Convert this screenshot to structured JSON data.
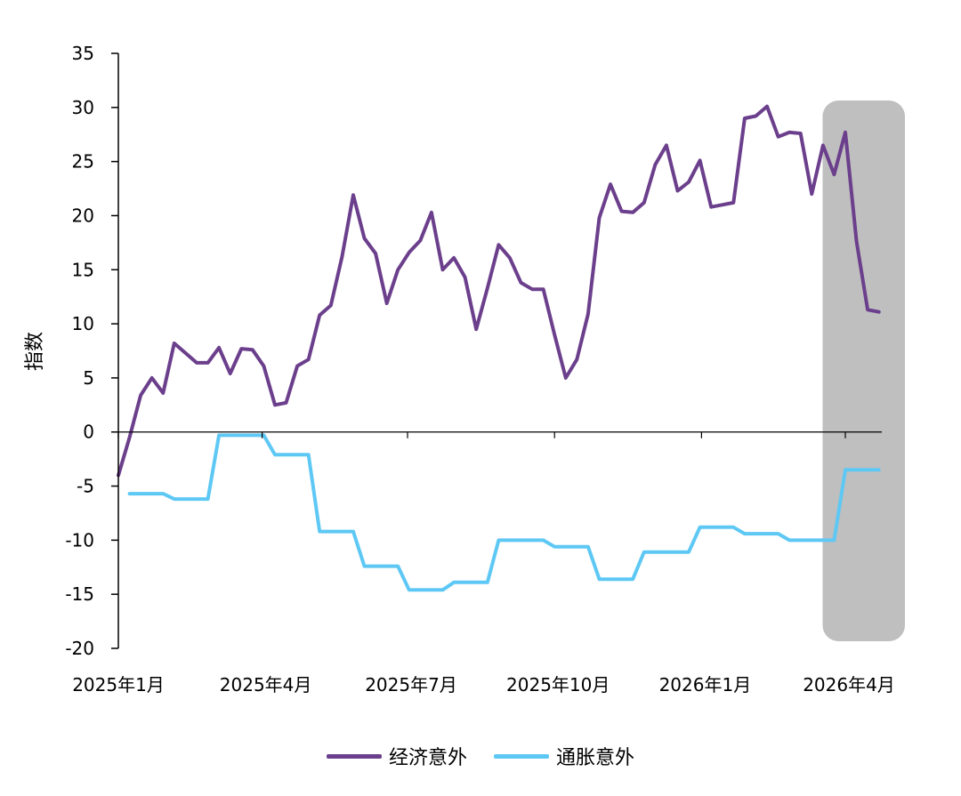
{
  "chart_data": {
    "type": "line",
    "title": "",
    "xlabel": "",
    "ylabel": "指数",
    "ylim": [
      -20,
      35
    ],
    "yticks": [
      35,
      30,
      25,
      20,
      15,
      10,
      5,
      0,
      -5,
      -10,
      -15,
      -20
    ],
    "xlim": [
      "2025-01-01",
      "2026-05-01"
    ],
    "xticks": [
      {
        "date": "2025-01-01",
        "label": "2025年1月"
      },
      {
        "date": "2025-04-01",
        "label": "2025年4月"
      },
      {
        "date": "2025-07-01",
        "label": "2025年7月"
      },
      {
        "date": "2025-10-01",
        "label": "2025年10月"
      },
      {
        "date": "2026-01-01",
        "label": "2026年1月"
      },
      {
        "date": "2026-04-01",
        "label": "2026年4月"
      }
    ],
    "highlight": {
      "from": "2026-03-20",
      "to": "2026-05-05",
      "color": "#bfbfbf"
    },
    "grid": false,
    "legend": "bottom-center",
    "series": [
      {
        "name": "经济意外",
        "color": "#6b3f8c",
        "points": [
          [
            "2025-01-01",
            -4.0
          ],
          [
            "2025-01-08",
            -0.5
          ],
          [
            "2025-01-15",
            3.4
          ],
          [
            "2025-01-22",
            5.0
          ],
          [
            "2025-01-29",
            3.6
          ],
          [
            "2025-02-05",
            8.2
          ],
          [
            "2025-02-12",
            7.3
          ],
          [
            "2025-02-19",
            6.4
          ],
          [
            "2025-02-26",
            6.4
          ],
          [
            "2025-03-05",
            7.8
          ],
          [
            "2025-03-12",
            5.4
          ],
          [
            "2025-03-19",
            7.7
          ],
          [
            "2025-03-26",
            7.6
          ],
          [
            "2025-04-02",
            6.1
          ],
          [
            "2025-04-09",
            2.5
          ],
          [
            "2025-04-16",
            2.7
          ],
          [
            "2025-04-23",
            6.1
          ],
          [
            "2025-04-30",
            6.7
          ],
          [
            "2025-05-07",
            10.8
          ],
          [
            "2025-05-14",
            11.7
          ],
          [
            "2025-05-21",
            16.2
          ],
          [
            "2025-05-28",
            21.9
          ],
          [
            "2025-06-04",
            17.9
          ],
          [
            "2025-06-11",
            16.5
          ],
          [
            "2025-06-18",
            11.9
          ],
          [
            "2025-06-25",
            15.0
          ],
          [
            "2025-07-02",
            16.6
          ],
          [
            "2025-07-09",
            17.7
          ],
          [
            "2025-07-16",
            20.3
          ],
          [
            "2025-07-23",
            15.0
          ],
          [
            "2025-07-30",
            16.1
          ],
          [
            "2025-08-06",
            14.3
          ],
          [
            "2025-08-13",
            9.5
          ],
          [
            "2025-08-20",
            13.3
          ],
          [
            "2025-08-27",
            17.3
          ],
          [
            "2025-09-03",
            16.1
          ],
          [
            "2025-09-10",
            13.8
          ],
          [
            "2025-09-17",
            13.2
          ],
          [
            "2025-09-24",
            13.2
          ],
          [
            "2025-10-01",
            9.0
          ],
          [
            "2025-10-08",
            5.0
          ],
          [
            "2025-10-15",
            6.7
          ],
          [
            "2025-10-22",
            10.9
          ],
          [
            "2025-10-29",
            19.8
          ],
          [
            "2025-11-05",
            22.9
          ],
          [
            "2025-11-12",
            20.4
          ],
          [
            "2025-11-19",
            20.3
          ],
          [
            "2025-11-26",
            21.2
          ],
          [
            "2025-12-03",
            24.7
          ],
          [
            "2025-12-10",
            26.5
          ],
          [
            "2025-12-17",
            22.3
          ],
          [
            "2025-12-24",
            23.1
          ],
          [
            "2025-12-31",
            25.1
          ],
          [
            "2026-01-07",
            20.8
          ],
          [
            "2026-01-14",
            21.0
          ],
          [
            "2026-01-21",
            21.2
          ],
          [
            "2026-01-28",
            29.0
          ],
          [
            "2026-02-04",
            29.2
          ],
          [
            "2026-02-11",
            30.1
          ],
          [
            "2026-02-18",
            27.3
          ],
          [
            "2026-02-25",
            27.7
          ],
          [
            "2026-03-04",
            27.6
          ],
          [
            "2026-03-11",
            22.0
          ],
          [
            "2026-03-18",
            26.5
          ],
          [
            "2026-03-25",
            23.8
          ],
          [
            "2026-04-01",
            27.7
          ],
          [
            "2026-04-08",
            17.6
          ],
          [
            "2026-04-15",
            11.3
          ],
          [
            "2026-04-22",
            11.1
          ]
        ]
      },
      {
        "name": "通胀意外",
        "color": "#5ec8f5",
        "points": [
          [
            "2025-01-08",
            -5.7
          ],
          [
            "2025-01-29",
            -5.7
          ],
          [
            "2025-02-05",
            -6.2
          ],
          [
            "2025-02-26",
            -6.2
          ],
          [
            "2025-03-05",
            -0.3
          ],
          [
            "2025-04-02",
            -0.3
          ],
          [
            "2025-04-09",
            -2.1
          ],
          [
            "2025-04-30",
            -2.1
          ],
          [
            "2025-05-07",
            -9.2
          ],
          [
            "2025-05-28",
            -9.2
          ],
          [
            "2025-06-04",
            -12.4
          ],
          [
            "2025-06-25",
            -12.4
          ],
          [
            "2025-07-02",
            -14.6
          ],
          [
            "2025-07-23",
            -14.6
          ],
          [
            "2025-07-30",
            -13.9
          ],
          [
            "2025-08-20",
            -13.9
          ],
          [
            "2025-08-27",
            -10.0
          ],
          [
            "2025-09-24",
            -10.0
          ],
          [
            "2025-10-01",
            -10.6
          ],
          [
            "2025-10-22",
            -10.6
          ],
          [
            "2025-10-29",
            -13.6
          ],
          [
            "2025-11-19",
            -13.6
          ],
          [
            "2025-11-26",
            -11.1
          ],
          [
            "2025-12-24",
            -11.1
          ],
          [
            "2025-12-31",
            -8.8
          ],
          [
            "2026-01-21",
            -8.8
          ],
          [
            "2026-01-28",
            -9.4
          ],
          [
            "2026-02-18",
            -9.4
          ],
          [
            "2026-02-25",
            -10.0
          ],
          [
            "2026-03-25",
            -10.0
          ],
          [
            "2026-04-01",
            -3.5
          ],
          [
            "2026-04-22",
            -3.5
          ]
        ]
      }
    ]
  }
}
